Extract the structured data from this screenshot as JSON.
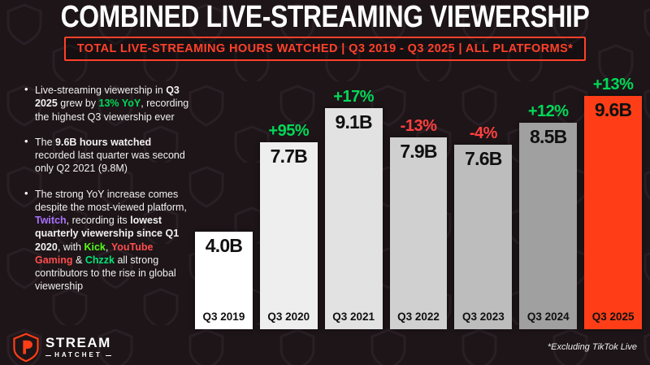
{
  "header": {
    "title": "COMBINED LIVE-STREAMING VIEWERSHIP",
    "subtitle": "TOTAL LIVE-STREAMING HOURS WATCHED | Q3 2019 - Q3 2025 | ALL PLATFORMS*"
  },
  "colors": {
    "accent_red": "#ff3e17",
    "green": "#00d957",
    "red": "#ff4040",
    "purple": "#a970ff",
    "kick_green": "#53fc18",
    "youtube_red": "#ff4d4d",
    "chzzk_green": "#00e676",
    "background": "#1d1518",
    "white": "#ffffff"
  },
  "insights": [
    [
      {
        "t": "Live-streaming viewership in "
      },
      {
        "t": "Q3 2025",
        "b": true
      },
      {
        "t": " grew by "
      },
      {
        "t": "13% YoY",
        "b": true,
        "c": "green"
      },
      {
        "t": ", recording the highest Q3 viewership ever"
      }
    ],
    [
      {
        "t": "The "
      },
      {
        "t": "9.6B hours watched",
        "b": true
      },
      {
        "t": " recorded last quarter was second only Q2 2021 (9.8M)"
      }
    ],
    [
      {
        "t": "The strong YoY increase comes despite the most-viewed platform, "
      },
      {
        "t": "Twitch",
        "b": true,
        "c": "purple"
      },
      {
        "t": ", recording its "
      },
      {
        "t": "lowest quarterly viewership since Q1 2020",
        "b": true
      },
      {
        "t": ", with "
      },
      {
        "t": "Kick",
        "b": true,
        "c": "kick_green"
      },
      {
        "t": ", "
      },
      {
        "t": "YouTube Gaming",
        "b": true,
        "c": "youtube_red"
      },
      {
        "t": " & "
      },
      {
        "t": "Chzzk",
        "b": true,
        "c": "chzzk_green"
      },
      {
        "t": " all strong contributors to the rise in global viewership"
      }
    ]
  ],
  "chart_data": {
    "type": "bar",
    "title": "Total Live-Streaming Hours Watched Q3 2019 - Q3 2025 (All Platforms)",
    "categories": [
      "Q3 2019",
      "Q3 2020",
      "Q3 2021",
      "Q3 2022",
      "Q3 2023",
      "Q3 2024",
      "Q3 2025"
    ],
    "values": [
      4.0,
      7.7,
      9.1,
      7.9,
      7.6,
      8.5,
      9.6
    ],
    "value_labels": [
      "4.0B",
      "7.7B",
      "9.1B",
      "7.9B",
      "7.6B",
      "8.5B",
      "9.6B"
    ],
    "pct_labels": [
      "",
      "+95%",
      "+17%",
      "-13%",
      "-4%",
      "+12%",
      "+13%"
    ],
    "pct_colors": [
      "",
      "green",
      "green",
      "red",
      "red",
      "green",
      "green"
    ],
    "bar_colors": [
      "#ffffff",
      "#eeeeee",
      "#e2e2e2",
      "#d0d0d0",
      "#bdbdbd",
      "#a0a0a0",
      "#ff3e17"
    ],
    "unit": "billions of hours",
    "ylim": [
      0,
      9.6
    ],
    "grid": false,
    "legend": "none"
  },
  "footer": {
    "logo_line1": "STREAM",
    "logo_line2": "HATCHET",
    "footnote": "*Excluding TikTok Live"
  }
}
